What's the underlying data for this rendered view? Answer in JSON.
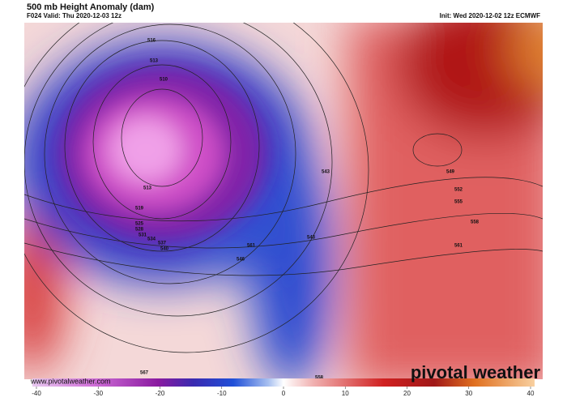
{
  "header": {
    "title": "500 mb Height Anomaly (dam)",
    "valid": "F024 Valid: Thu 2020-12-03 12z",
    "init": "Init: Wed 2020-12-02 12z ECMWF"
  },
  "map": {
    "contour_labels": [
      516,
      513,
      510,
      513,
      519,
      525,
      528,
      531,
      534,
      537,
      540,
      543,
      546,
      549,
      552,
      555,
      558,
      561,
      543,
      561,
      567,
      558
    ]
  },
  "colorbar": {
    "lim": [
      -40,
      40
    ],
    "ticks": [
      -40,
      -30,
      -20,
      -10,
      0,
      10,
      20,
      30,
      40
    ]
  },
  "footer": {
    "url": "www.pivotalweather.com",
    "logo": "pivotal weather"
  }
}
